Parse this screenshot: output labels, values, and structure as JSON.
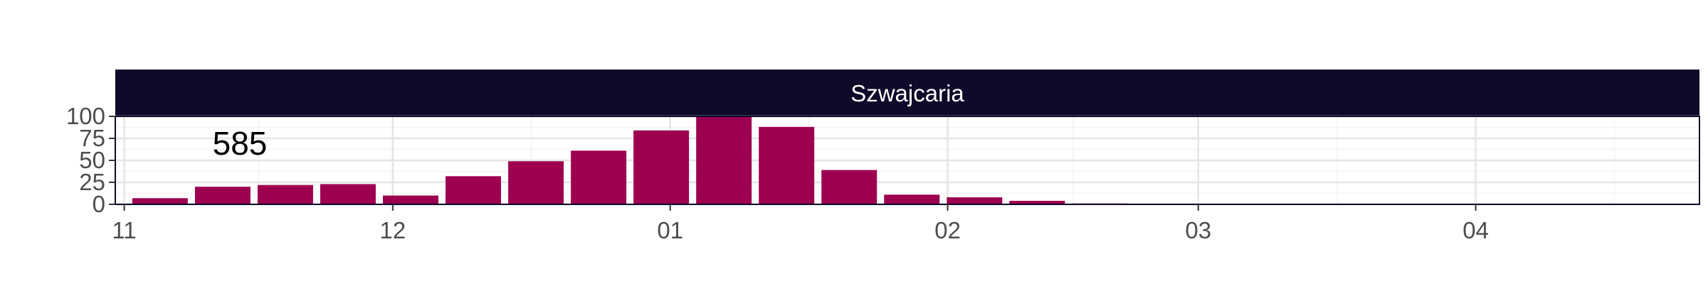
{
  "chart_data": {
    "type": "bar",
    "panel_title": "Szwajcaria",
    "annotation": "585",
    "x_scale": "date",
    "x_range": [
      "2020-10-31",
      "2021-04-26"
    ],
    "x_ticks": [
      {
        "date": "2020-11-01",
        "label": "11"
      },
      {
        "date": "2020-12-01",
        "label": "12"
      },
      {
        "date": "2021-01-01",
        "label": "01"
      },
      {
        "date": "2021-02-01",
        "label": "02"
      },
      {
        "date": "2021-03-01",
        "label": "03"
      },
      {
        "date": "2021-04-01",
        "label": "04"
      }
    ],
    "ylim": [
      0,
      100
    ],
    "y_ticks": [
      0,
      25,
      50,
      75,
      100
    ],
    "bar_width_days": 6.2,
    "categories": [
      "2020-11-05",
      "2020-11-12",
      "2020-11-19",
      "2020-11-26",
      "2020-12-03",
      "2020-12-10",
      "2020-12-17",
      "2020-12-24",
      "2020-12-31",
      "2021-01-07",
      "2021-01-14",
      "2021-01-21",
      "2021-01-28",
      "2021-02-04",
      "2021-02-11",
      "2021-02-18",
      "2021-02-25",
      "2021-03-04",
      "2021-03-11",
      "2021-03-18",
      "2021-03-25",
      "2021-04-01",
      "2021-04-08",
      "2021-04-15",
      "2021-04-22"
    ],
    "values": [
      7,
      20,
      22,
      23,
      10,
      32,
      49,
      61,
      84,
      101,
      88,
      39,
      11,
      8,
      4,
      1,
      0.5,
      0.3,
      0.2,
      0.2,
      0.2,
      0.2,
      0.2,
      0.2,
      0.2
    ],
    "grid": true,
    "colors": {
      "bar": "#9e0050",
      "strip_fill": "#0e0a29",
      "panel_border": "#0e0a29",
      "grid_major": "#e5e5e5",
      "grid_minor": "#f2f2f2",
      "tick_text": "#4d4d4d",
      "annotation_text": "#000000"
    }
  }
}
